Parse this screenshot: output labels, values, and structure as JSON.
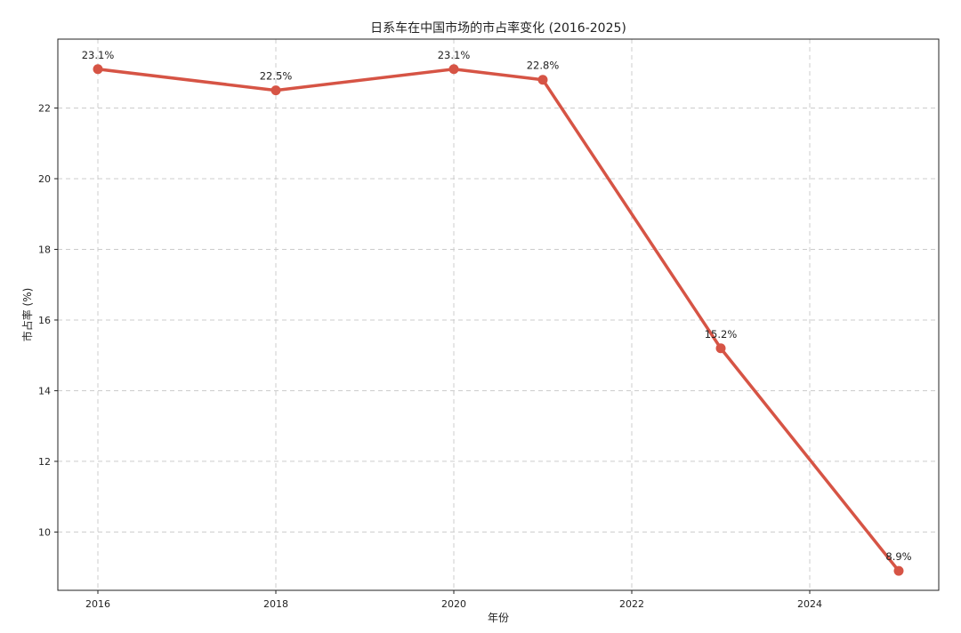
{
  "chart_data": {
    "type": "line",
    "title": "日系车在中国市场的市占率变化 (2016-2025)",
    "xlabel": "年份",
    "ylabel": "市占率 (%)",
    "xlim": [
      2015.55,
      2025.45
    ],
    "ylim": [
      8.35,
      23.95
    ],
    "x_ticks": [
      2016,
      2018,
      2020,
      2022,
      2024
    ],
    "y_ticks": [
      10,
      12,
      14,
      16,
      18,
      20,
      22
    ],
    "grid": true,
    "line_color": "#d65445",
    "series": [
      {
        "x": [
          2016,
          2018,
          2020,
          2021,
          2023,
          2025
        ],
        "values": [
          23.1,
          22.5,
          23.1,
          22.8,
          15.2,
          8.9
        ],
        "labels": [
          "23.1%",
          "22.5%",
          "23.1%",
          "22.8%",
          "15.2%",
          "8.9%"
        ]
      }
    ]
  }
}
